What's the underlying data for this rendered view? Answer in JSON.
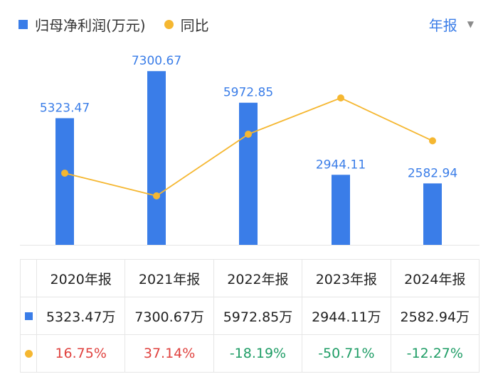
{
  "legend": {
    "bar_label": "归母净利润(万元)",
    "line_label": "同比"
  },
  "period_selector": {
    "label": "年报"
  },
  "colors": {
    "bar": "#3a7de8",
    "line": "#f5b731",
    "positive": "#e0423f",
    "negative": "#1f9d66"
  },
  "chart_data": {
    "type": "bar+line",
    "categories": [
      "2020年报",
      "2021年报",
      "2022年报",
      "2023年报",
      "2024年报"
    ],
    "series": [
      {
        "name": "归母净利润(万元)",
        "type": "bar",
        "values": [
          5323.47,
          7300.67,
          5972.85,
          2944.11,
          2582.94
        ],
        "labels": [
          "5323.47",
          "7300.67",
          "5972.85",
          "2944.11",
          "2582.94"
        ]
      },
      {
        "name": "同比",
        "type": "line",
        "values": [
          16.75,
          37.14,
          -18.19,
          -50.71,
          -12.27
        ]
      }
    ]
  },
  "table": {
    "headers": [
      "2020年报",
      "2021年报",
      "2022年报",
      "2023年报",
      "2024年报"
    ],
    "profit_row": [
      "5323.47万",
      "7300.67万",
      "5972.85万",
      "2944.11万",
      "2582.94万"
    ],
    "yoy_row": [
      "16.75%",
      "37.14%",
      "-18.19%",
      "-50.71%",
      "-12.27%"
    ]
  }
}
